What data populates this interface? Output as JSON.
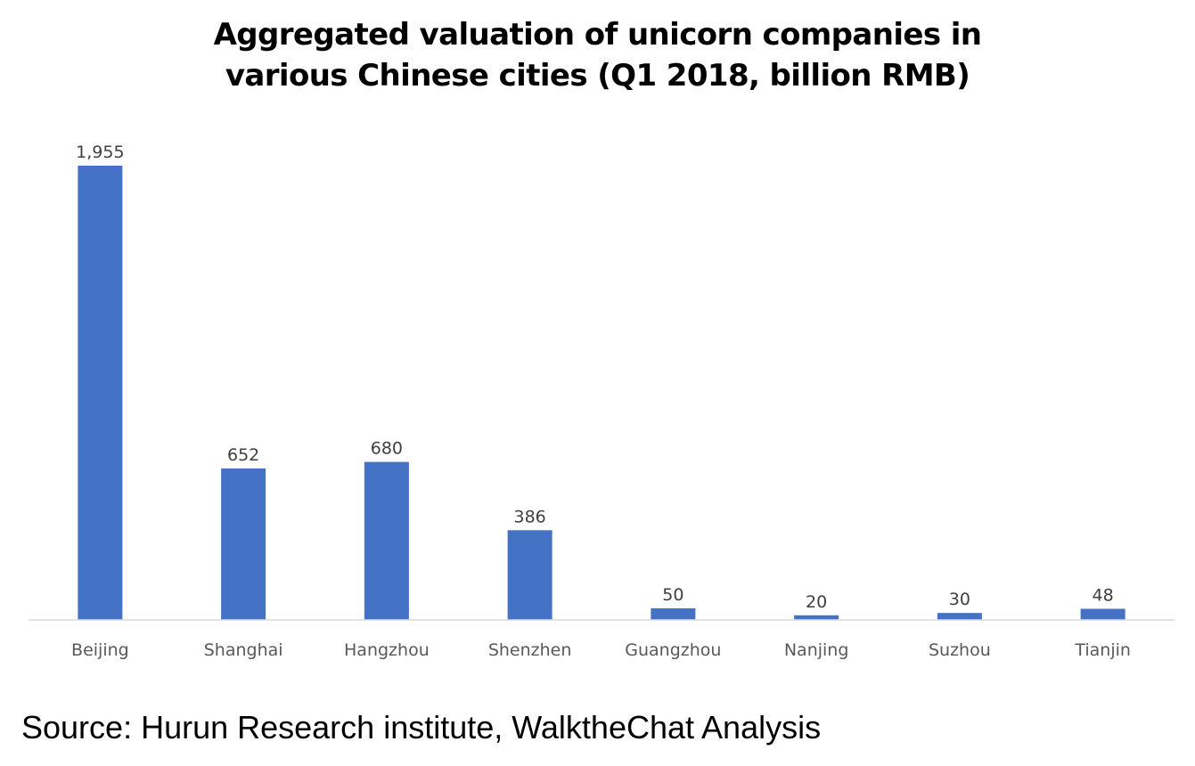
{
  "chart_data": {
    "type": "bar",
    "title_lines": [
      "Aggregated valuation of unicorn companies in",
      "various Chinese cities (Q1 2018, billion RMB)"
    ],
    "categories": [
      "Beijing",
      "Shanghai",
      "Hangzhou",
      "Shenzhen",
      "Guangzhou",
      "Nanjing",
      "Suzhou",
      "Tianjin"
    ],
    "values": [
      1955,
      652,
      680,
      386,
      50,
      20,
      30,
      48
    ],
    "value_labels": [
      "1,955",
      "652",
      "680",
      "386",
      "50",
      "20",
      "30",
      "48"
    ],
    "xlabel": "",
    "ylabel": "",
    "ylim": [
      0,
      1955
    ],
    "grid": false,
    "legend": "none",
    "bar_color": "#4472C4",
    "axis_color": "#D9D9D9"
  },
  "footer": {
    "source": "Source: Hurun Research institute, WalktheChat Analysis"
  }
}
